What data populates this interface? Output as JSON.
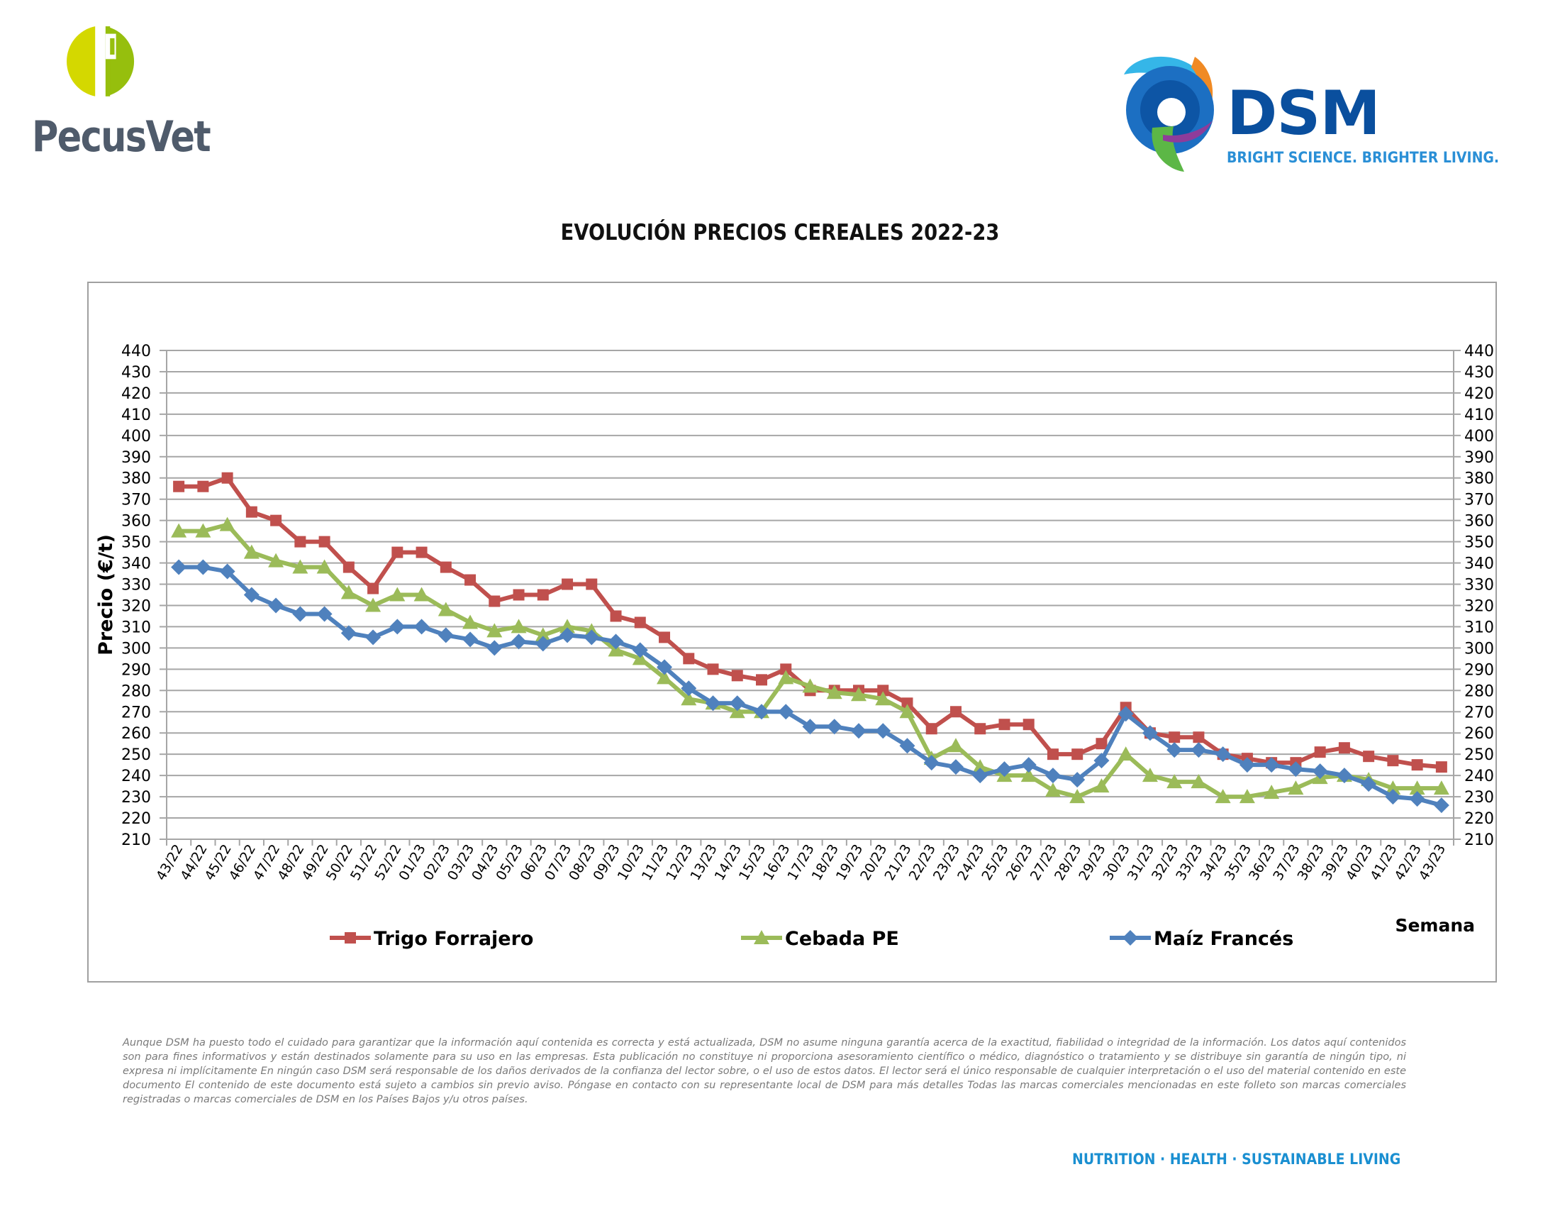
{
  "header": {
    "pecusvet_logo_text": "PecusVet",
    "dsm_logo_text": "DSM",
    "dsm_tagline": "BRIGHT SCIENCE. BRIGHTER LIVING."
  },
  "footer": {
    "disclaimer": "Aunque DSM ha puesto todo el cuidado para garantizar que la información aquí contenida es correcta y está actualizada, DSM no asume ninguna garantía acerca de la exactitud, fiabilidad o integridad de la información. Los datos aquí contenidos son para fines informativos y están destinados solamente para su uso en las empresas. Esta publicación no constituye ni proporciona asesoramiento científico o médico, diagnóstico o tratamiento y se distribuye sin garantía de ningún tipo, ni expresa ni implícitamente En ningún caso DSM será responsable de los daños derivados de la confianza del lector sobre, o el uso de estos datos. El lector será el único responsable de cualquier interpretación o el uso del material contenido en este documento El contenido de este documento está sujeto a cambios sin previo aviso. Póngase en contacto con su representante local de DSM para más detalles Todas las marcas comerciales mencionadas en este folleto son marcas comerciales registradas o marcas comerciales de DSM en los Países Bajos y/u otros países.",
    "tagline": "NUTRITION · HEALTH · SUSTAINABLE LIVING"
  },
  "colors": {
    "trigo": "#c0504d",
    "cebada": "#9bbb59",
    "maiz": "#4f81bd",
    "grid": "#a6a6a6",
    "dsm_blue": "#0a4f9e",
    "tagline_blue": "#1a8fd1"
  },
  "chart_data": {
    "type": "line",
    "title": "EVOLUCIÓN PRECIOS CEREALES 2022-23",
    "xlabel": "Semana",
    "ylabel": "Precio (€/t)",
    "ylim": [
      210,
      440
    ],
    "ytick_step": 10,
    "secondary_y_axis": true,
    "grid": "horizontal",
    "legend_position": "bottom",
    "categories": [
      "43/22",
      "44/22",
      "45/22",
      "46/22",
      "47/22",
      "48/22",
      "49/22",
      "50/22",
      "51/22",
      "52/22",
      "01/23",
      "02/23",
      "03/23",
      "04/23",
      "05/23",
      "06/23",
      "07/23",
      "08/23",
      "09/23",
      "10/23",
      "11/23",
      "12/23",
      "13/23",
      "14/23",
      "15/23",
      "16/23",
      "17/23",
      "18/23",
      "19/23",
      "20/23",
      "21/23",
      "22/23",
      "23/23",
      "24/23",
      "25/23",
      "26/23",
      "27/23",
      "28/23",
      "29/23",
      "30/23",
      "31/23",
      "32/23",
      "33/23",
      "34/23",
      "35/23",
      "36/23",
      "37/23",
      "38/23",
      "39/23",
      "40/23",
      "41/23",
      "42/23",
      "43/23"
    ],
    "series": [
      {
        "name": "Trigo Forrajero",
        "marker": "square",
        "color": "#c0504d",
        "values": [
          376,
          376,
          380,
          364,
          360,
          350,
          350,
          338,
          328,
          345,
          345,
          338,
          332,
          322,
          325,
          325,
          330,
          330,
          315,
          312,
          305,
          295,
          290,
          287,
          285,
          290,
          280,
          280,
          280,
          280,
          274,
          262,
          270,
          262,
          264,
          264,
          250,
          250,
          255,
          272,
          260,
          258,
          258,
          250,
          248,
          246,
          246,
          251,
          253,
          249,
          247,
          245,
          244
        ]
      },
      {
        "name": "Cebada PE",
        "marker": "triangle",
        "color": "#9bbb59",
        "values": [
          355,
          355,
          358,
          345,
          341,
          338,
          338,
          326,
          320,
          325,
          325,
          318,
          312,
          308,
          310,
          306,
          310,
          308,
          299,
          295,
          286,
          276,
          274,
          270,
          270,
          286,
          282,
          279,
          278,
          276,
          270,
          248,
          254,
          244,
          240,
          240,
          233,
          230,
          235,
          250,
          240,
          237,
          237,
          230,
          230,
          232,
          234,
          239,
          240,
          238,
          234,
          234,
          234
        ]
      },
      {
        "name": "Maíz Francés",
        "marker": "diamond",
        "color": "#4f81bd",
        "values": [
          338,
          338,
          336,
          325,
          320,
          316,
          316,
          307,
          305,
          310,
          310,
          306,
          304,
          300,
          303,
          302,
          306,
          305,
          303,
          299,
          291,
          281,
          274,
          274,
          270,
          270,
          263,
          263,
          261,
          261,
          254,
          246,
          244,
          240,
          243,
          245,
          240,
          238,
          247,
          269,
          260,
          252,
          252,
          250,
          245,
          245,
          243,
          242,
          240,
          236,
          230,
          229,
          226
        ]
      }
    ]
  }
}
